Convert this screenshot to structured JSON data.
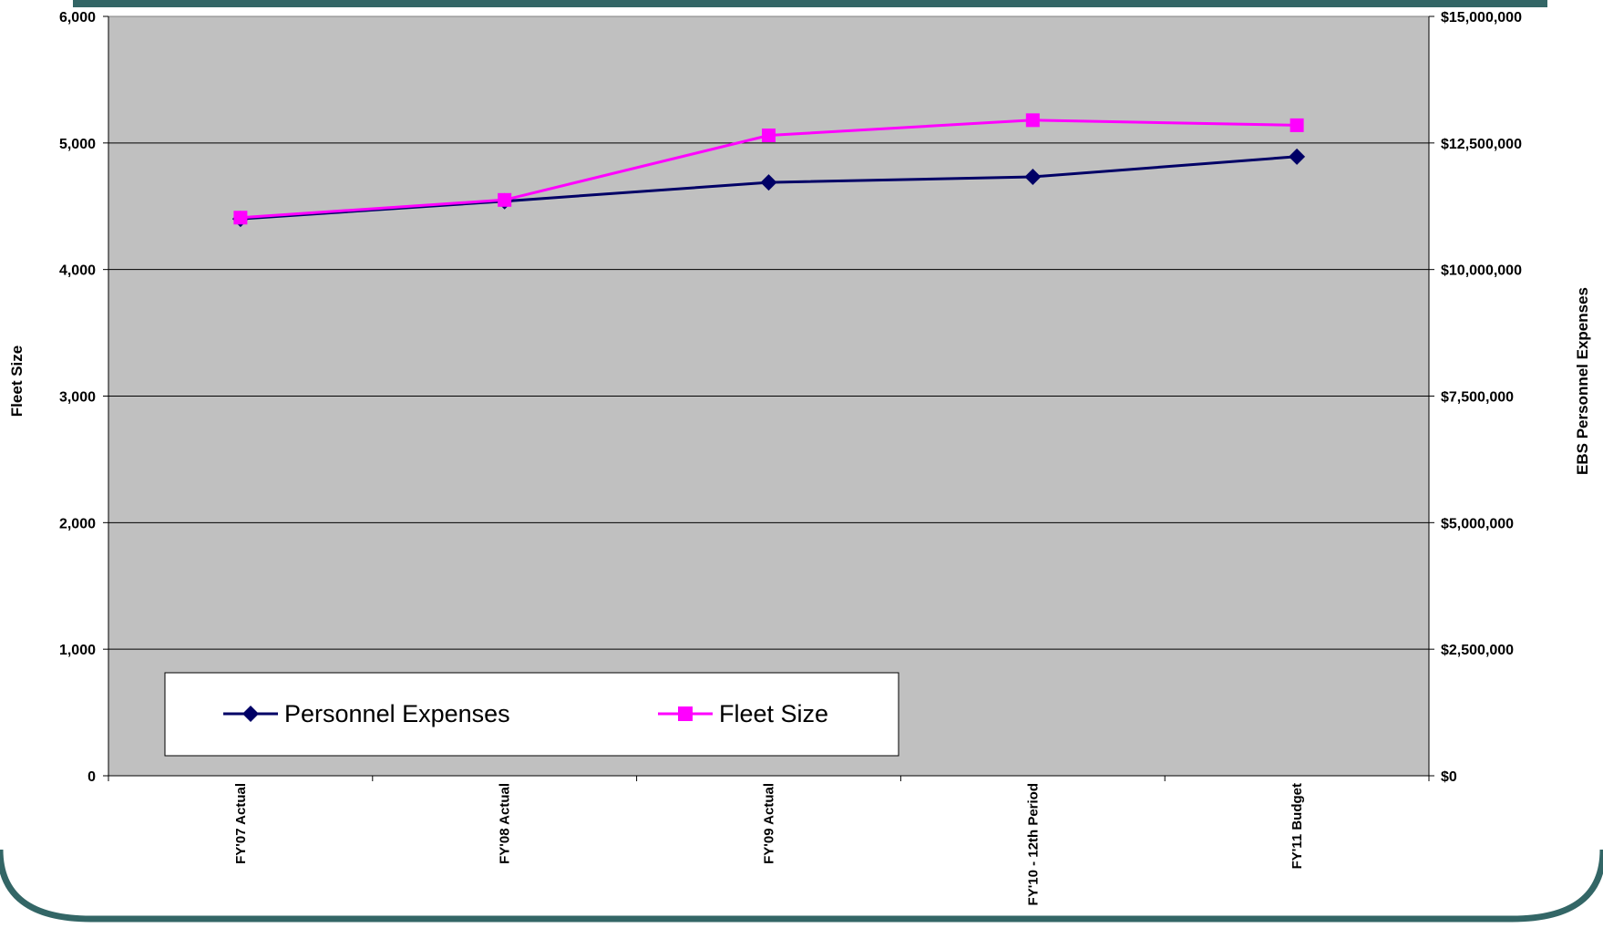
{
  "chart_data": {
    "type": "line",
    "categories": [
      "FY'07 Actual",
      "FY'08 Actual",
      "FY'09 Actual",
      "FY'10 - 12th Period",
      "FY'11 Budget"
    ],
    "series": [
      {
        "name": "Personnel Expenses",
        "axis": "right",
        "color": "#000066",
        "marker": "diamond",
        "values": [
          11000000,
          11350000,
          11720000,
          11830000,
          12230000
        ]
      },
      {
        "name": "Fleet Size",
        "axis": "left",
        "color": "#FF00FF",
        "marker": "square",
        "values": [
          4410,
          4550,
          5060,
          5180,
          5140
        ]
      }
    ],
    "ylabel": "Fleet Size",
    "y2label": "EBS Personnel Expenses",
    "ylim": [
      0,
      6000
    ],
    "y2lim": [
      0,
      15000000
    ],
    "yticks": [
      "0",
      "1,000",
      "2,000",
      "3,000",
      "4,000",
      "5,000",
      "6,000"
    ],
    "y2ticks": [
      "$0",
      "$2,500,000",
      "$5,000,000",
      "$7,500,000",
      "$10,000,000",
      "$12,500,000",
      "$15,000,000"
    ],
    "grid": true,
    "plot_background": "#C0C0C0",
    "legend_position": "bottom-left"
  }
}
